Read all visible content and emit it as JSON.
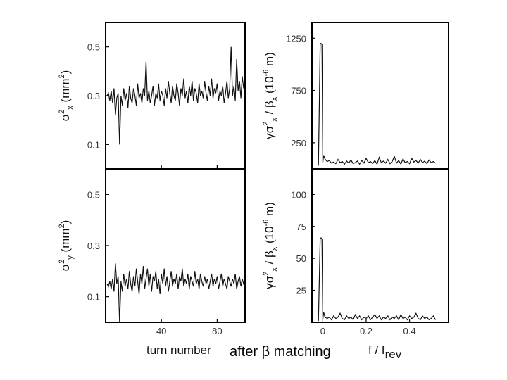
{
  "caption": "after β matching",
  "chart_data": [
    {
      "id": "sigma-x",
      "type": "line",
      "ylabel": "σ²x (mm²)",
      "ylabel_parts": {
        "main": "σ",
        "sup": "2",
        "sub": "x",
        "unit": " (mm",
        "unit_sup": "2",
        "unit_end": ")"
      },
      "xlim": [
        0,
        100
      ],
      "ylim": [
        0.0,
        0.6
      ],
      "yticks": [
        0.1,
        0.3,
        0.5
      ],
      "ytick_labels": [
        "0.1",
        "0.3",
        "0.5"
      ],
      "xticks": [
        40,
        80
      ],
      "x": [
        1,
        2,
        3,
        4,
        5,
        6,
        7,
        8,
        9,
        10,
        11,
        12,
        13,
        14,
        15,
        16,
        17,
        18,
        19,
        20,
        21,
        22,
        23,
        24,
        25,
        26,
        27,
        28,
        29,
        30,
        31,
        32,
        33,
        34,
        35,
        36,
        37,
        38,
        39,
        40,
        41,
        42,
        43,
        44,
        45,
        46,
        47,
        48,
        49,
        50,
        51,
        52,
        53,
        54,
        55,
        56,
        57,
        58,
        59,
        60,
        61,
        62,
        63,
        64,
        65,
        66,
        67,
        68,
        69,
        70,
        71,
        72,
        73,
        74,
        75,
        76,
        77,
        78,
        79,
        80,
        81,
        82,
        83,
        84,
        85,
        86,
        87,
        88,
        89,
        90,
        91,
        92,
        93,
        94,
        95,
        96,
        97,
        98,
        99,
        100
      ],
      "y": [
        0.3,
        0.31,
        0.28,
        0.32,
        0.27,
        0.33,
        0.22,
        0.29,
        0.31,
        0.1,
        0.3,
        0.26,
        0.33,
        0.28,
        0.31,
        0.25,
        0.34,
        0.29,
        0.27,
        0.33,
        0.3,
        0.26,
        0.35,
        0.29,
        0.31,
        0.27,
        0.33,
        0.3,
        0.44,
        0.28,
        0.32,
        0.27,
        0.3,
        0.34,
        0.26,
        0.31,
        0.29,
        0.35,
        0.28,
        0.32,
        0.3,
        0.26,
        0.33,
        0.29,
        0.36,
        0.31,
        0.27,
        0.34,
        0.3,
        0.28,
        0.35,
        0.31,
        0.26,
        0.33,
        0.3,
        0.37,
        0.29,
        0.32,
        0.27,
        0.34,
        0.3,
        0.36,
        0.28,
        0.33,
        0.31,
        0.27,
        0.35,
        0.3,
        0.32,
        0.29,
        0.36,
        0.31,
        0.28,
        0.34,
        0.3,
        0.37,
        0.29,
        0.33,
        0.31,
        0.35,
        0.28,
        0.32,
        0.3,
        0.34,
        0.27,
        0.31,
        0.36,
        0.29,
        0.33,
        0.5,
        0.3,
        0.34,
        0.28,
        0.45,
        0.32,
        0.36,
        0.29,
        0.38,
        0.33,
        0.35
      ]
    },
    {
      "id": "sigma-y",
      "type": "line",
      "ylabel": "σ²y (mm²)",
      "ylabel_parts": {
        "main": "σ",
        "sup": "2",
        "sub": "y",
        "unit": " (mm",
        "unit_sup": "2",
        "unit_end": ")"
      },
      "xlim": [
        0,
        100
      ],
      "ylim": [
        0.0,
        0.6
      ],
      "yticks": [
        0.1,
        0.3,
        0.5
      ],
      "ytick_labels": [
        "0.1",
        "0.3",
        "0.5"
      ],
      "xticks": [
        40,
        80
      ],
      "xtick_labels": [
        "40",
        "80"
      ],
      "xlabel": "turn number",
      "x": [
        1,
        2,
        3,
        4,
        5,
        6,
        7,
        8,
        9,
        10,
        11,
        12,
        13,
        14,
        15,
        16,
        17,
        18,
        19,
        20,
        21,
        22,
        23,
        24,
        25,
        26,
        27,
        28,
        29,
        30,
        31,
        32,
        33,
        34,
        35,
        36,
        37,
        38,
        39,
        40,
        41,
        42,
        43,
        44,
        45,
        46,
        47,
        48,
        49,
        50,
        51,
        52,
        53,
        54,
        55,
        56,
        57,
        58,
        59,
        60,
        61,
        62,
        63,
        64,
        65,
        66,
        67,
        68,
        69,
        70,
        71,
        72,
        73,
        74,
        75,
        76,
        77,
        78,
        79,
        80,
        81,
        82,
        83,
        84,
        85,
        86,
        87,
        88,
        89,
        90,
        91,
        92,
        93,
        94,
        95,
        96,
        97,
        98,
        99,
        100
      ],
      "y": [
        0.15,
        0.14,
        0.16,
        0.13,
        0.17,
        0.12,
        0.23,
        0.15,
        0.18,
        0.0,
        0.16,
        0.12,
        0.19,
        0.14,
        0.17,
        0.13,
        0.2,
        0.15,
        0.12,
        0.18,
        0.14,
        0.21,
        0.16,
        0.11,
        0.19,
        0.15,
        0.22,
        0.13,
        0.17,
        0.21,
        0.14,
        0.19,
        0.12,
        0.18,
        0.16,
        0.2,
        0.13,
        0.17,
        0.11,
        0.19,
        0.15,
        0.21,
        0.14,
        0.18,
        0.12,
        0.16,
        0.2,
        0.14,
        0.17,
        0.15,
        0.19,
        0.13,
        0.18,
        0.16,
        0.21,
        0.14,
        0.17,
        0.15,
        0.19,
        0.13,
        0.18,
        0.16,
        0.14,
        0.2,
        0.15,
        0.17,
        0.13,
        0.19,
        0.16,
        0.14,
        0.18,
        0.15,
        0.17,
        0.13,
        0.16,
        0.19,
        0.14,
        0.17,
        0.15,
        0.18,
        0.13,
        0.16,
        0.19,
        0.14,
        0.17,
        0.15,
        0.13,
        0.18,
        0.16,
        0.14,
        0.17,
        0.15,
        0.19,
        0.13,
        0.16,
        0.18,
        0.14,
        0.17,
        0.15,
        0.16
      ]
    },
    {
      "id": "spectrum-x",
      "type": "line",
      "ylabel": "γσ²x / βx (10⁻⁶ m)",
      "ylabel_parts": {
        "main": "γσ",
        "sup": "2",
        "sub": "x",
        "mid": " / β",
        "sub2": "x",
        "unit": "  (10",
        "unit_sup": "-6",
        "unit_end": " m)"
      },
      "xlim": [
        -0.05,
        0.58
      ],
      "ylim": [
        0,
        1400
      ],
      "yticks": [
        250,
        750,
        1250
      ],
      "ytick_labels": [
        "250",
        "750",
        "1250"
      ],
      "x": [
        -0.02,
        -0.012,
        -0.008,
        -0.004,
        0.0,
        0.004,
        0.01,
        0.02,
        0.03,
        0.04,
        0.05,
        0.06,
        0.07,
        0.08,
        0.09,
        0.1,
        0.11,
        0.12,
        0.13,
        0.14,
        0.15,
        0.16,
        0.17,
        0.18,
        0.19,
        0.2,
        0.21,
        0.22,
        0.23,
        0.24,
        0.25,
        0.26,
        0.27,
        0.28,
        0.29,
        0.3,
        0.31,
        0.32,
        0.33,
        0.34,
        0.35,
        0.36,
        0.37,
        0.38,
        0.39,
        0.4,
        0.41,
        0.42,
        0.43,
        0.44,
        0.45,
        0.46,
        0.47,
        0.48,
        0.49,
        0.5,
        0.51,
        0.52
      ],
      "y": [
        30,
        1200,
        1200,
        1190,
        60,
        130,
        95,
        70,
        80,
        55,
        65,
        50,
        90,
        60,
        70,
        45,
        75,
        55,
        85,
        50,
        60,
        75,
        45,
        80,
        55,
        100,
        60,
        70,
        50,
        80,
        45,
        110,
        60,
        75,
        55,
        90,
        50,
        70,
        120,
        55,
        80,
        45,
        95,
        60,
        70,
        50,
        100,
        65,
        80,
        55,
        90,
        60,
        75,
        50,
        85,
        60,
        70,
        55
      ]
    },
    {
      "id": "spectrum-y",
      "type": "line",
      "ylabel": "γσ²x / βx (10⁻⁶ m)",
      "ylabel_parts": {
        "main": "γσ",
        "sup": "2",
        "sub": "x",
        "mid": " / β",
        "sub2": "x",
        "unit": "  (10",
        "unit_sup": "-6",
        "unit_end": " m)"
      },
      "xlim": [
        -0.05,
        0.58
      ],
      "ylim": [
        0,
        120
      ],
      "yticks": [
        25,
        50,
        75,
        100
      ],
      "ytick_labels": [
        "25",
        "50",
        "75",
        "100"
      ],
      "xticks": [
        0.0,
        0.2,
        0.4
      ],
      "xtick_labels": [
        "0",
        "0.2",
        "0.4"
      ],
      "xlabel": "f / frev",
      "xlabel_parts": {
        "main": "f / f",
        "sub": "rev"
      },
      "x": [
        -0.02,
        -0.012,
        -0.008,
        -0.004,
        0.0,
        0.004,
        0.01,
        0.02,
        0.03,
        0.04,
        0.05,
        0.06,
        0.07,
        0.08,
        0.09,
        0.1,
        0.11,
        0.12,
        0.13,
        0.14,
        0.15,
        0.16,
        0.17,
        0.18,
        0.19,
        0.2,
        0.21,
        0.22,
        0.23,
        0.24,
        0.25,
        0.26,
        0.27,
        0.28,
        0.29,
        0.3,
        0.31,
        0.32,
        0.33,
        0.34,
        0.35,
        0.36,
        0.37,
        0.38,
        0.39,
        0.4,
        0.41,
        0.42,
        0.43,
        0.44,
        0.45,
        0.46,
        0.47,
        0.48,
        0.49,
        0.5,
        0.51,
        0.52
      ],
      "y": [
        1,
        66,
        66,
        65,
        2,
        8,
        4,
        3,
        4,
        2,
        5,
        3,
        4,
        7,
        3,
        2,
        5,
        3,
        4,
        2,
        6,
        3,
        5,
        2,
        4,
        3,
        5,
        2,
        4,
        6,
        3,
        5,
        2,
        4,
        3,
        5,
        2,
        4,
        3,
        5,
        2,
        6,
        3,
        4,
        2,
        5,
        3,
        4,
        7,
        3,
        2,
        5,
        3,
        4,
        2,
        3,
        5,
        2
      ]
    }
  ]
}
